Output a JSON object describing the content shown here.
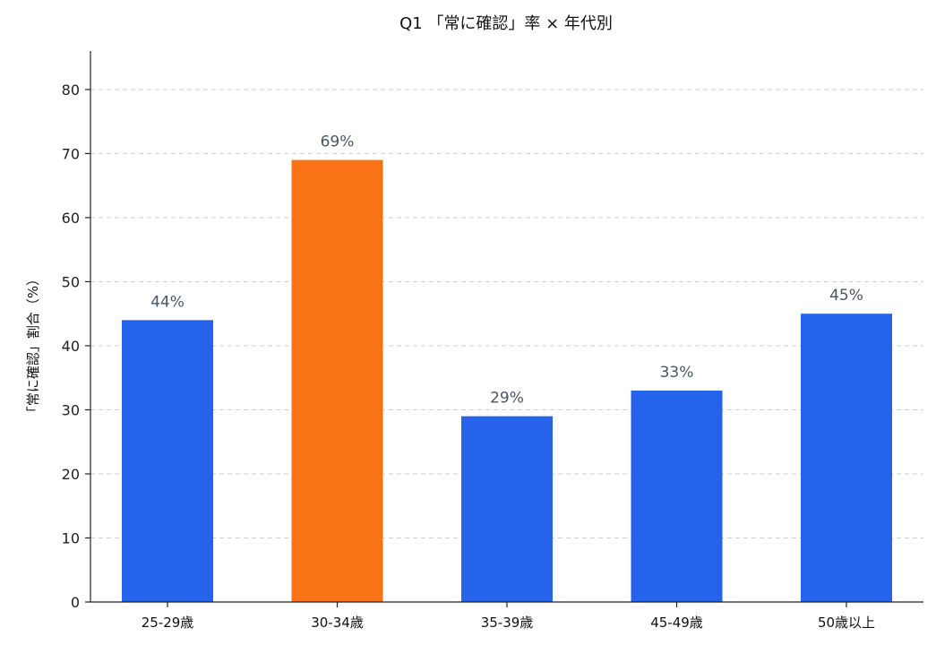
{
  "chart_data": {
    "type": "bar",
    "title": "Q1 「常に確認」率 × 年代別",
    "xlabel": "",
    "ylabel": "「常に確認」割合（%）",
    "categories": [
      "25-29歳",
      "30-34歳",
      "35-39歳",
      "45-49歳",
      "50歳以上"
    ],
    "values": [
      44,
      69,
      29,
      33,
      45
    ],
    "data_labels": [
      "44%",
      "69%",
      "29%",
      "33%",
      "45%"
    ],
    "ylim": [
      0,
      86
    ],
    "yticks": [
      0,
      10,
      20,
      30,
      40,
      50,
      60,
      70,
      80
    ],
    "grid": true,
    "colors": {
      "default_bar": "#2563eb",
      "highlight_bar": "#f97316",
      "highlight_index": 1
    }
  }
}
